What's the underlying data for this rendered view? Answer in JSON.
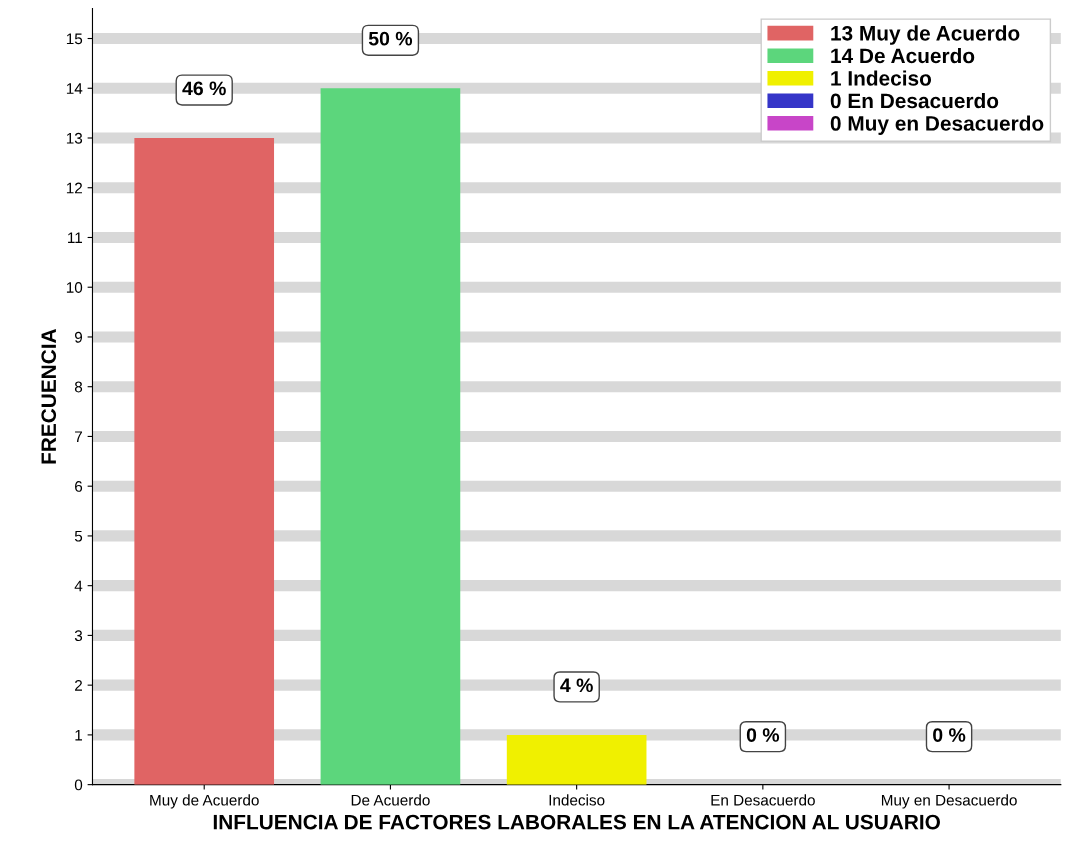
{
  "chart_data": {
    "type": "bar",
    "xlabel": "INFLUENCIA DE FACTORES LABORALES EN LA ATENCION AL USUARIO",
    "ylabel": "FRECUENCIA",
    "categories": [
      "Muy de Acuerdo",
      "De Acuerdo",
      "Indeciso",
      "En Desacuerdo",
      "Muy en Desacuerdo"
    ],
    "series": [
      {
        "name": "13 Muy de Acuerdo",
        "color": "#e06464",
        "values": [
          13,
          null,
          null,
          null,
          null
        ]
      },
      {
        "name": "14 De Acuerdo",
        "color": "#5cd67c",
        "values": [
          null,
          14,
          null,
          null,
          null
        ]
      },
      {
        "name": "1 Indeciso",
        "color": "#f0f000",
        "values": [
          null,
          null,
          1,
          null,
          null
        ]
      },
      {
        "name": "0 En Desacuerdo",
        "color": "#3535c8",
        "values": [
          null,
          null,
          null,
          0,
          null
        ]
      },
      {
        "name": "0 Muy en Desacuerdo",
        "color": "#c845c8",
        "values": [
          null,
          null,
          null,
          null,
          0
        ]
      }
    ],
    "annotations": [
      {
        "text": "46 %",
        "x": "Muy de Acuerdo",
        "y": 13
      },
      {
        "text": "50 %",
        "x": "De Acuerdo",
        "y": 14
      },
      {
        "text": "4 %",
        "x": "Indeciso",
        "y": 1
      },
      {
        "text": "0 %",
        "x": "En Desacuerdo",
        "y": 0
      },
      {
        "text": "0 %",
        "x": "Muy en Desacuerdo",
        "y": 0
      }
    ],
    "ylim": [
      0,
      15.6
    ],
    "yticks": [
      0,
      1,
      2,
      3,
      4,
      5,
      6,
      7,
      8,
      9,
      10,
      11,
      12,
      13,
      14,
      15
    ],
    "grid": "y",
    "legend": "top right"
  }
}
